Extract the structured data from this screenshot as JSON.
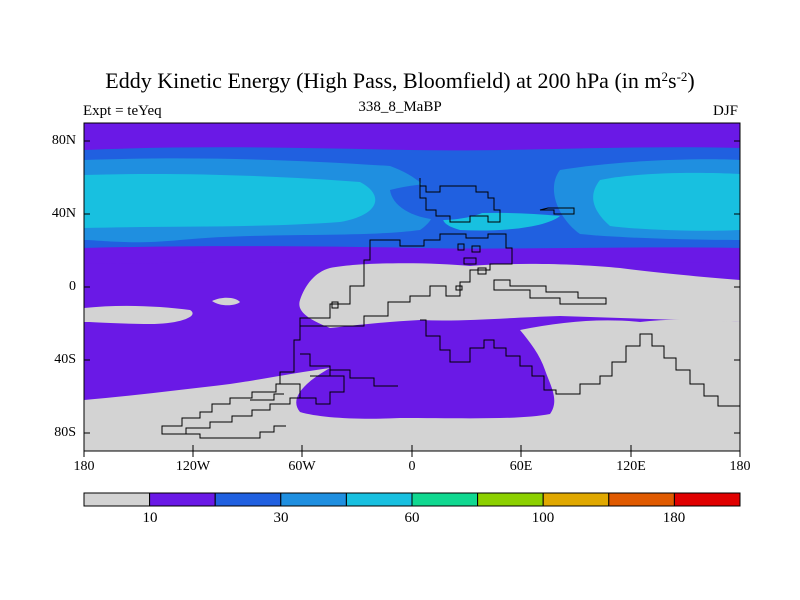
{
  "header": {
    "title": "Eddy Kinetic Energy (High Pass, Bloomfield) at 200 hPa (in m",
    "title_sup1": "2",
    "title_mid": "s",
    "title_sup2": "-2",
    "title_end": ")",
    "subtitle": "338_8_MaBP",
    "left_label": "Expt = teYeq",
    "right_label": "DJF"
  },
  "chart_data": {
    "type": "heatmap",
    "title": "Eddy Kinetic Energy (High Pass, Bloomfield) at 200 hPa (in m^2 s^-2)",
    "subtitle": "338_8_MaBP",
    "x_ticks": [
      "180",
      "120W",
      "60W",
      "0",
      "60E",
      "120E",
      "180"
    ],
    "x_tick_values": [
      -180,
      -120,
      -60,
      0,
      60,
      120,
      180
    ],
    "y_ticks": [
      "80N",
      "40N",
      "0",
      "40S",
      "80S"
    ],
    "y_tick_values": [
      80,
      40,
      0,
      -40,
      -80
    ],
    "xlim": [
      -180,
      180
    ],
    "ylim": [
      -90,
      90
    ],
    "colorbar": {
      "levels": [
        "10",
        "30",
        "60",
        "100",
        "180"
      ],
      "level_values": [
        10,
        30,
        60,
        100,
        180
      ],
      "colors": [
        "#d3d3d3",
        "#6a19e6",
        "#2060e0",
        "#1f8fe0",
        "#18c0e0",
        "#10d890",
        "#8cd000",
        "#e0a800",
        "#e05a00",
        "#e00000"
      ]
    },
    "bands": [
      {
        "lat_range": [
          -90,
          -70
        ],
        "range": "<10",
        "color": "#d3d3d3"
      },
      {
        "lat_range": [
          -70,
          -45
        ],
        "range": "10-20",
        "color": "#6a19e6"
      },
      {
        "lat_range": [
          -25,
          5
        ],
        "range": "10-20",
        "color": "#6a19e6"
      },
      {
        "lat_range": [
          15,
          25
        ],
        "range": "20-30",
        "color": "#2060e0"
      },
      {
        "lat_range": [
          25,
          55
        ],
        "range": "30-60",
        "color": "#18c0e0"
      },
      {
        "lat_range": [
          55,
          90
        ],
        "range": "10-20",
        "color": "#6a19e6"
      }
    ],
    "grid": false
  }
}
